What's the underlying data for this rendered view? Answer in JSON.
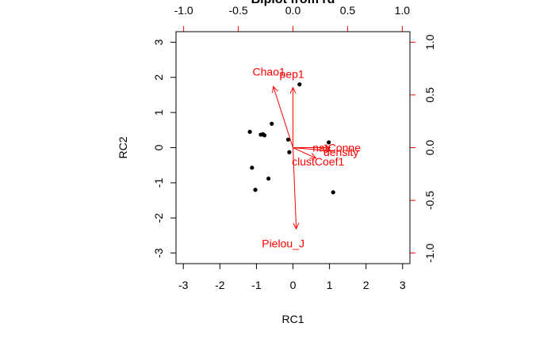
{
  "chart_data": {
    "type": "scatter",
    "subtype": "biplot",
    "title": "Biplot from rd",
    "xlabel": "RC1",
    "ylabel": "RC2",
    "xlim": [
      -3.2,
      3.2
    ],
    "ylim": [
      -3.3,
      3.3
    ],
    "x_ticks": [
      "-3",
      "-2",
      "-1",
      "0",
      "1",
      "2",
      "3"
    ],
    "y_ticks": [
      "-3",
      "-2",
      "-1",
      "0",
      "1",
      "2",
      "3"
    ],
    "top_axis": {
      "lim": [
        -1.07,
        1.07
      ],
      "ticks": [
        "-1.0",
        "-0.5",
        "0.0",
        "0.5",
        "1.0"
      ]
    },
    "right_axis": {
      "lim": [
        -1.1,
        1.1
      ],
      "ticks": [
        "-1.0",
        "-0.5",
        "0.0",
        "0.5",
        "1.0"
      ]
    },
    "points": [
      {
        "x": 0.18,
        "y": 1.8
      },
      {
        "x": -0.58,
        "y": 0.68
      },
      {
        "x": -1.18,
        "y": 0.45
      },
      {
        "x": -0.88,
        "y": 0.37
      },
      {
        "x": -0.82,
        "y": 0.38
      },
      {
        "x": -0.78,
        "y": 0.35
      },
      {
        "x": -0.13,
        "y": 0.23
      },
      {
        "x": 0.98,
        "y": 0.15
      },
      {
        "x": -0.1,
        "y": -0.13
      },
      {
        "x": -1.12,
        "y": -0.57
      },
      {
        "x": -0.67,
        "y": -0.88
      },
      {
        "x": -1.03,
        "y": -1.2
      },
      {
        "x": 1.1,
        "y": -1.27
      }
    ],
    "arrow_color": "#ff0000",
    "point_color": "#000000",
    "variables": [
      {
        "name": "Chao1",
        "x": -0.18,
        "y": 0.58,
        "lx": -0.22,
        "ly": 0.71
      },
      {
        "name": "pep1",
        "x": 0.0,
        "y": 0.57,
        "lx": -0.01,
        "ly": 0.69
      },
      {
        "name": "natConne",
        "x": 0.34,
        "y": 0.0,
        "lx": 0.4,
        "ly": -0.01
      },
      {
        "name": "density",
        "x": 0.34,
        "y": -0.03,
        "lx": 0.44,
        "ly": -0.05
      },
      {
        "name": "clustCoef1",
        "x": 0.21,
        "y": -0.1,
        "lx": 0.23,
        "ly": -0.14
      },
      {
        "name": "Pielou_J",
        "x": 0.03,
        "y": -0.77,
        "lx": -0.09,
        "ly": -0.92
      }
    ]
  }
}
